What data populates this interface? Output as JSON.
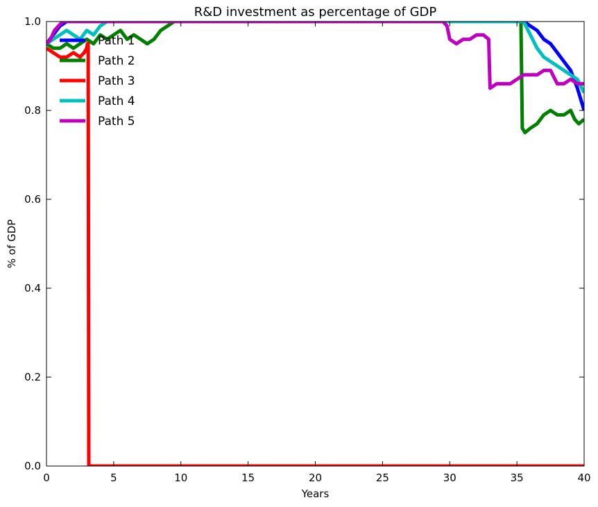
{
  "chart_data": {
    "type": "line",
    "title": "R&D investment as percentage of  GDP",
    "xlabel": "Years",
    "ylabel": "% of GDP",
    "xlim": [
      0,
      40
    ],
    "ylim": [
      0.0,
      1.0
    ],
    "x_ticks": [
      "0",
      "5",
      "10",
      "15",
      "20",
      "25",
      "30",
      "35",
      "40"
    ],
    "y_ticks": [
      "0.0",
      "0.2",
      "0.4",
      "0.6",
      "0.8",
      "1.0"
    ],
    "legend_position": "top-left",
    "grid": false,
    "series": [
      {
        "name": "Path 1",
        "color": "#0000ff",
        "points": [
          [
            0,
            0.95
          ],
          [
            0.5,
            0.97
          ],
          [
            1,
            0.99
          ],
          [
            1.5,
            1.0
          ],
          [
            2,
            1.0
          ],
          [
            3,
            1.0
          ],
          [
            35.5,
            1.0
          ],
          [
            36,
            0.99
          ],
          [
            36.5,
            0.98
          ],
          [
            37,
            0.96
          ],
          [
            37.5,
            0.95
          ],
          [
            38,
            0.93
          ],
          [
            38.5,
            0.91
          ],
          [
            39,
            0.89
          ],
          [
            39.5,
            0.85
          ],
          [
            40,
            0.8
          ]
        ]
      },
      {
        "name": "Path 2",
        "color": "#007f00",
        "points": [
          [
            0,
            0.95
          ],
          [
            0.5,
            0.94
          ],
          [
            1,
            0.94
          ],
          [
            1.5,
            0.95
          ],
          [
            2,
            0.94
          ],
          [
            2.5,
            0.95
          ],
          [
            3,
            0.96
          ],
          [
            3.5,
            0.95
          ],
          [
            4,
            0.97
          ],
          [
            4.5,
            0.96
          ],
          [
            5,
            0.97
          ],
          [
            5.5,
            0.98
          ],
          [
            6,
            0.96
          ],
          [
            6.5,
            0.97
          ],
          [
            7,
            0.96
          ],
          [
            7.5,
            0.95
          ],
          [
            8,
            0.96
          ],
          [
            8.5,
            0.98
          ],
          [
            9,
            0.99
          ],
          [
            9.5,
            1.0
          ],
          [
            10,
            1.0
          ],
          [
            35.3,
            1.0
          ],
          [
            35.4,
            0.76
          ],
          [
            35.6,
            0.75
          ],
          [
            36,
            0.76
          ],
          [
            36.5,
            0.77
          ],
          [
            37,
            0.79
          ],
          [
            37.5,
            0.8
          ],
          [
            38,
            0.79
          ],
          [
            38.5,
            0.79
          ],
          [
            39,
            0.8
          ],
          [
            39.3,
            0.78
          ],
          [
            39.6,
            0.77
          ],
          [
            40,
            0.78
          ]
        ]
      },
      {
        "name": "Path 3",
        "color": "#ff0000",
        "points": [
          [
            0,
            0.94
          ],
          [
            0.5,
            0.93
          ],
          [
            1,
            0.92
          ],
          [
            1.5,
            0.92
          ],
          [
            2,
            0.93
          ],
          [
            2.5,
            0.92
          ],
          [
            2.8,
            0.93
          ],
          [
            3,
            0.94
          ],
          [
            3.05,
            0.95
          ],
          [
            3.1,
            0.95
          ],
          [
            3.15,
            0.0
          ],
          [
            40,
            0.0
          ]
        ]
      },
      {
        "name": "Path 4",
        "color": "#00bfbf",
        "points": [
          [
            0,
            0.95
          ],
          [
            0.5,
            0.96
          ],
          [
            1,
            0.97
          ],
          [
            1.5,
            0.98
          ],
          [
            2,
            0.97
          ],
          [
            2.5,
            0.96
          ],
          [
            3,
            0.98
          ],
          [
            3.5,
            0.97
          ],
          [
            4,
            0.99
          ],
          [
            4.5,
            1.0
          ],
          [
            35,
            1.0
          ],
          [
            35.5,
            1.0
          ],
          [
            36,
            0.97
          ],
          [
            36.5,
            0.94
          ],
          [
            37,
            0.92
          ],
          [
            37.5,
            0.91
          ],
          [
            38,
            0.9
          ],
          [
            38.5,
            0.89
          ],
          [
            39,
            0.88
          ],
          [
            39.5,
            0.87
          ],
          [
            40,
            0.84
          ]
        ]
      },
      {
        "name": "Path 5",
        "color": "#bf00bf",
        "points": [
          [
            0,
            0.95
          ],
          [
            0.3,
            0.96
          ],
          [
            0.6,
            0.98
          ],
          [
            0.9,
            0.99
          ],
          [
            1.2,
            1.0
          ],
          [
            29.5,
            1.0
          ],
          [
            29.8,
            0.99
          ],
          [
            30,
            0.96
          ],
          [
            30.5,
            0.95
          ],
          [
            31,
            0.96
          ],
          [
            31.5,
            0.96
          ],
          [
            32,
            0.97
          ],
          [
            32.5,
            0.97
          ],
          [
            32.9,
            0.96
          ],
          [
            33,
            0.85
          ],
          [
            33.5,
            0.86
          ],
          [
            34,
            0.86
          ],
          [
            34.5,
            0.86
          ],
          [
            35,
            0.87
          ],
          [
            35.5,
            0.88
          ],
          [
            36,
            0.88
          ],
          [
            36.5,
            0.88
          ],
          [
            37,
            0.89
          ],
          [
            37.5,
            0.89
          ],
          [
            38,
            0.86
          ],
          [
            38.5,
            0.86
          ],
          [
            39,
            0.87
          ],
          [
            39.5,
            0.86
          ],
          [
            40,
            0.86
          ]
        ]
      }
    ]
  }
}
